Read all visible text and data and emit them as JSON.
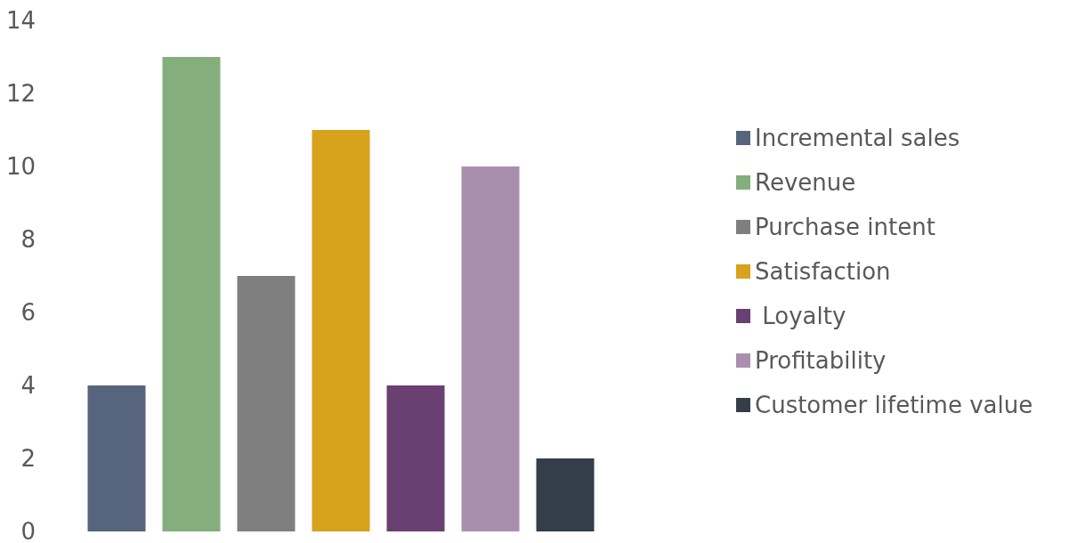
{
  "chart_data": {
    "type": "bar",
    "categories": [
      null,
      null,
      null,
      null,
      null,
      null,
      null
    ],
    "stacked": true,
    "series": [
      {
        "name": "Incremental sales",
        "color": "#56657d",
        "values": [
          4,
          null,
          null,
          null,
          null,
          null,
          null
        ]
      },
      {
        "name": "Revenue",
        "color": "#84ae7c",
        "values": [
          null,
          13,
          null,
          null,
          null,
          null,
          null
        ]
      },
      {
        "name": "Purchase intent",
        "color": "#7f7f7f",
        "values": [
          null,
          null,
          7,
          null,
          null,
          null,
          null
        ]
      },
      {
        "name": "Satisfaction",
        "color": "#d8a21c",
        "values": [
          null,
          null,
          null,
          11,
          null,
          null,
          null
        ]
      },
      {
        "name": " Loyalty",
        "color": "#6a3f71",
        "values": [
          null,
          null,
          null,
          null,
          4,
          null,
          null
        ]
      },
      {
        "name": "Profitability",
        "color": "#a98fae",
        "values": [
          null,
          null,
          null,
          null,
          null,
          10,
          null
        ]
      },
      {
        "name": "Customer lifetime value",
        "color": "#333e4a",
        "values": [
          null,
          null,
          null,
          null,
          null,
          null,
          2
        ]
      }
    ],
    "ylim": [
      0,
      14
    ],
    "yticks": [
      0,
      2,
      4,
      6,
      8,
      10,
      12,
      14
    ],
    "grid": false,
    "legend": "right"
  }
}
